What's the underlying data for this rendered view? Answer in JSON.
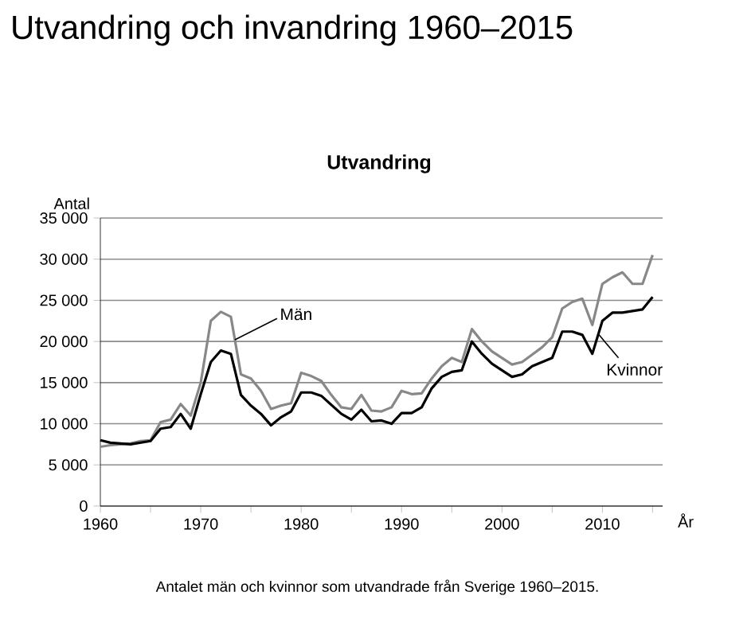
{
  "chart_data": {
    "type": "line",
    "title": "Utvandring och invandring 1960–2015",
    "subtitle": "Utvandring",
    "xlabel": "År",
    "ylabel": "Antal",
    "annotations": [
      "Antalet män och kvinnor som utvandrade från Sverige 1960–2015.",
      {
        "text": "Män",
        "x": 1973.4,
        "y": 20200
      },
      {
        "text": "Kvinnor",
        "x": 2009.6,
        "y": 20900
      }
    ],
    "x": [
      1960,
      1961,
      1962,
      1963,
      1964,
      1965,
      1966,
      1967,
      1968,
      1969,
      1970,
      1971,
      1972,
      1973,
      1974,
      1975,
      1976,
      1977,
      1978,
      1979,
      1980,
      1981,
      1982,
      1983,
      1984,
      1985,
      1986,
      1987,
      1988,
      1989,
      1990,
      1991,
      1992,
      1993,
      1994,
      1995,
      1996,
      1997,
      1998,
      1999,
      2000,
      2001,
      2002,
      2003,
      2004,
      2005,
      2006,
      2007,
      2008,
      2009,
      2010,
      2011,
      2012,
      2013,
      2014,
      2015
    ],
    "series": [
      {
        "color": "#888888",
        "values": [
          7200,
          7400,
          7500,
          7600,
          7900,
          8000,
          10200,
          10500,
          12400,
          11000,
          15000,
          22500,
          23600,
          23000,
          16000,
          15500,
          14000,
          11800,
          12200,
          12500,
          16200,
          15800,
          15200,
          13500,
          12000,
          11800,
          13500,
          11600,
          11500,
          12000,
          14000,
          13600,
          13700,
          15500,
          17000,
          18000,
          17500,
          21500,
          20000,
          18800,
          18000,
          17200,
          17500,
          18400,
          19300,
          20500,
          24000,
          24800,
          25200,
          22000,
          27000,
          27800,
          28400,
          27000,
          27000,
          30500
        ]
      },
      {
        "color": "#000000",
        "values": [
          8000,
          7700,
          7600,
          7500,
          7700,
          7900,
          9400,
          9600,
          11200,
          9400,
          13600,
          17500,
          18900,
          18500,
          13500,
          12200,
          11200,
          9800,
          10800,
          11500,
          13800,
          13800,
          13400,
          12300,
          11200,
          10500,
          11700,
          10300,
          10400,
          10000,
          11300,
          11300,
          12000,
          14300,
          15700,
          16300,
          16500,
          20000,
          18500,
          17300,
          16500,
          15700,
          16000,
          17000,
          17500,
          18000,
          21200,
          21200,
          20800,
          18500,
          22500,
          23500,
          23500,
          23700,
          23900,
          25400
        ]
      }
    ],
    "xlim": [
      1960,
      2016
    ],
    "xticks": [
      1960,
      {
        "value": 1965,
        "label": null
      },
      1970,
      {
        "value": 1975,
        "label": null
      },
      1980,
      {
        "value": 1985,
        "label": null
      },
      1990,
      {
        "value": 1995,
        "label": null
      },
      2000,
      {
        "value": 2005,
        "label": null
      },
      2010,
      {
        "value": 2015,
        "label": null
      }
    ],
    "ylim": [
      0,
      35000
    ],
    "yticks": [
      0,
      {
        "value": 5000,
        "label": "5 000"
      },
      {
        "value": 10000,
        "label": "10 000"
      },
      {
        "value": 15000,
        "label": "15 000"
      },
      {
        "value": 20000,
        "label": "20 000"
      },
      {
        "value": 25000,
        "label": "25 000"
      },
      {
        "value": 30000,
        "label": "30 000"
      },
      {
        "value": 35000,
        "label": "35 000"
      }
    ],
    "grid": "y",
    "legend": false,
    "marker": "none",
    "line_style": "solid"
  }
}
